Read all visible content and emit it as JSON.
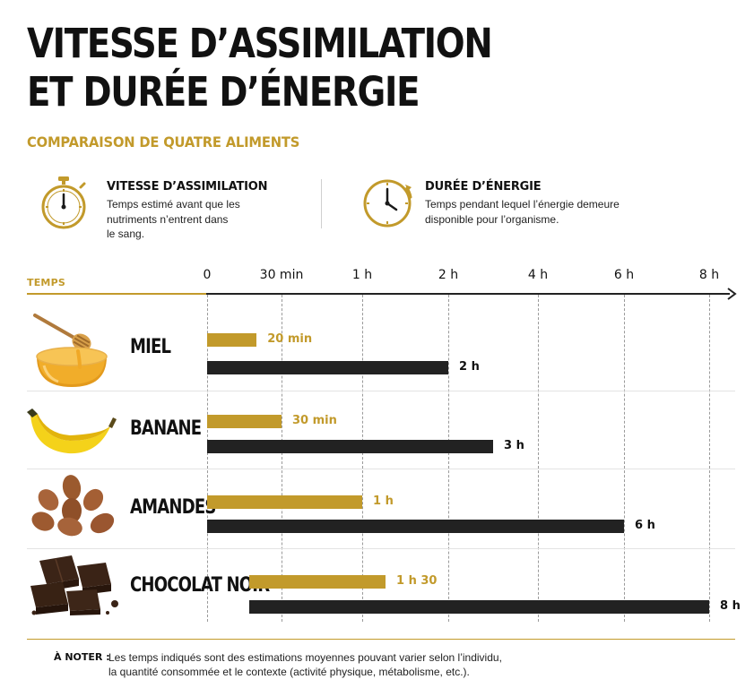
{
  "title_lines": [
    "VITESSE D’ASSIMILATION",
    "ET DURÉE D’ÉNERGIE"
  ],
  "subtitle": "COMPARAISON DE QUATRE ALIMENTS",
  "legend": {
    "speed": {
      "title": "VITESSE D’ASSIMILATION",
      "desc_lines": [
        "Temps estimé avant que les",
        "nutriments n’entrent dans",
        "le sang."
      ],
      "icon": "stopwatch-icon"
    },
    "duration": {
      "title": "DURÉE D’ÉNERGIE",
      "desc_lines": [
        "Temps pendant lequel l’énergie demeure",
        "disponible pour l’organisme."
      ],
      "icon": "clock-icon"
    }
  },
  "colors": {
    "accent": "#C29A2B",
    "dark": "#222222"
  },
  "chart_data": {
    "type": "bar",
    "orientation": "horizontal",
    "axis_title": "TEMPS",
    "x_ticks": [
      {
        "label": "0",
        "hours": 0
      },
      {
        "label": "30 min",
        "hours": 0.5
      },
      {
        "label": "1 h",
        "hours": 1
      },
      {
        "label": "2 h",
        "hours": 2
      },
      {
        "label": "4 h",
        "hours": 4
      },
      {
        "label": "6 h",
        "hours": 6
      },
      {
        "label": "8 h",
        "hours": 8
      }
    ],
    "categories": [
      "MIEL",
      "BANANE",
      "AMANDES",
      "CHOCOLAT NOIR"
    ],
    "series": [
      {
        "key": "speed",
        "color": "#C29A2B",
        "values_hours": [
          0.333,
          0.5,
          1,
          1.5
        ],
        "labels": [
          "20 min",
          "30 min",
          "1 h",
          "1 h 30"
        ]
      },
      {
        "key": "duration",
        "color": "#222222",
        "values_hours": [
          2,
          3,
          6,
          8
        ],
        "labels": [
          "2 h",
          "3 h",
          "6 h",
          "8 h"
        ]
      }
    ],
    "grid": true,
    "gridline_style": "dashed"
  },
  "food_icons": [
    "honey-icon",
    "banana-icon",
    "almonds-icon",
    "dark-chocolate-icon"
  ],
  "note": {
    "label": "À NOTER :",
    "lines": [
      "Les temps indiqués sont des estimations moyennes pouvant varier selon l’individu,",
      "la quantité consommée et le contexte (activité physique, métabolisme, etc.)."
    ]
  }
}
